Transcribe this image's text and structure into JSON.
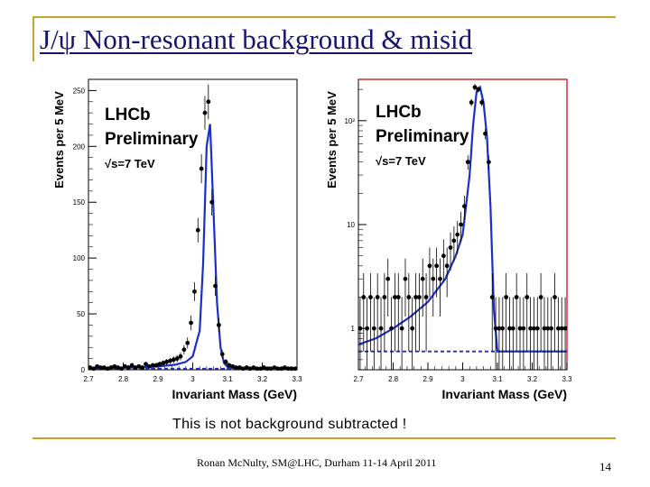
{
  "slide": {
    "title": "J/ψ Non-resonant background & misid",
    "caption": "This is not background subtracted !",
    "footer": "Ronan McNulty, SM@LHC, Durham 11-14 April 2011",
    "page_number": "14",
    "accent_color": "#c8a22a",
    "title_color": "#14146e"
  },
  "chart_data": [
    {
      "type": "scatter",
      "scale": "linear",
      "title": "",
      "annotations": [
        "LHCb",
        "Preliminary",
        "√s=7 TeV"
      ],
      "xlabel": "Invariant Mass (GeV)",
      "ylabel": "Events per 5 MeV",
      "xlim": [
        2.7,
        3.3
      ],
      "ylim": [
        0,
        260
      ],
      "xticks": [
        2.7,
        2.8,
        2.9,
        3,
        3.1,
        3.2,
        3.3
      ],
      "xtick_labels": [
        "2.7",
        "2.8",
        "2.9",
        "3",
        "3.1",
        "3.2",
        "3.3"
      ],
      "yticks": [
        0,
        50,
        100,
        150,
        200,
        250
      ],
      "ytick_labels": [
        "0",
        "50",
        "100",
        "150",
        "200",
        "250"
      ],
      "points": {
        "x": [
          2.705,
          2.715,
          2.725,
          2.735,
          2.745,
          2.755,
          2.765,
          2.775,
          2.785,
          2.795,
          2.805,
          2.815,
          2.825,
          2.835,
          2.845,
          2.855,
          2.865,
          2.875,
          2.885,
          2.895,
          2.905,
          2.915,
          2.925,
          2.935,
          2.945,
          2.955,
          2.965,
          2.975,
          2.985,
          2.995,
          3.005,
          3.015,
          3.025,
          3.035,
          3.045,
          3.055,
          3.065,
          3.075,
          3.085,
          3.095,
          3.105,
          3.115,
          3.125,
          3.135,
          3.145,
          3.155,
          3.165,
          3.175,
          3.185,
          3.195,
          3.205,
          3.215,
          3.225,
          3.235,
          3.245,
          3.255,
          3.265,
          3.275,
          3.285,
          3.295
        ],
        "y": [
          2,
          1,
          3,
          2,
          2,
          1,
          2,
          3,
          2,
          1,
          3,
          2,
          4,
          2,
          3,
          2,
          5,
          3,
          4,
          4,
          5,
          6,
          7,
          8,
          9,
          10,
          12,
          18,
          24,
          42,
          70,
          125,
          180,
          230,
          240,
          150,
          75,
          40,
          14,
          7,
          4,
          3,
          2,
          2,
          1,
          2,
          1,
          2,
          1,
          1,
          2,
          1,
          1,
          2,
          1,
          1,
          2,
          1,
          1,
          1
        ],
        "err": [
          1.4,
          1,
          1.7,
          1.4,
          1.4,
          1,
          1.4,
          1.7,
          1.4,
          1,
          1.7,
          1.4,
          2,
          1.4,
          1.7,
          1.4,
          2.2,
          1.7,
          2,
          2,
          2.2,
          2.4,
          2.6,
          2.8,
          3,
          3.2,
          3.5,
          4.2,
          4.9,
          6.5,
          8.4,
          11,
          13,
          15,
          15.5,
          12,
          8.7,
          6.3,
          3.7,
          2.6,
          2,
          1.7,
          1.4,
          1.4,
          1,
          1.4,
          1,
          1.4,
          1,
          1,
          1.4,
          1,
          1,
          1.4,
          1,
          1,
          1.4,
          1,
          1,
          1
        ]
      },
      "series": [
        {
          "name": "fit",
          "x": [
            2.7,
            2.75,
            2.8,
            2.85,
            2.9,
            2.95,
            2.98,
            3,
            3.02,
            3.03,
            3.04,
            3.05,
            3.06,
            3.07,
            3.08,
            3.09,
            3.1,
            3.12,
            3.15,
            3.2,
            3.25,
            3.3
          ],
          "values": [
            1.5,
            1.6,
            1.8,
            2.2,
            3,
            4.5,
            7,
            12,
            35,
            95,
            200,
            220,
            140,
            60,
            20,
            6,
            2.5,
            1.3,
            1,
            1,
            1,
            1
          ]
        },
        {
          "name": "background",
          "x": [
            2.7,
            3.3
          ],
          "values": [
            1,
            1
          ]
        }
      ]
    },
    {
      "type": "scatter",
      "scale": "log",
      "title": "",
      "annotations": [
        "LHCb",
        "Preliminary",
        "√s=7 TeV"
      ],
      "xlabel": "Invariant Mass (GeV)",
      "ylabel": "Events per 5 MeV",
      "xlim": [
        2.7,
        3.3
      ],
      "ylim": [
        0.4,
        250
      ],
      "xticks": [
        2.7,
        2.8,
        2.9,
        3,
        3.1,
        3.2,
        3.3
      ],
      "xtick_labels": [
        "2.7",
        "2.8",
        "2.9",
        "3",
        "3.1",
        "3.2",
        "3.3"
      ],
      "yticks": [
        1,
        10,
        100
      ],
      "ytick_labels": [
        "1",
        "10",
        "10²"
      ],
      "points": {
        "x": [
          2.705,
          2.715,
          2.725,
          2.735,
          2.745,
          2.755,
          2.765,
          2.775,
          2.785,
          2.795,
          2.805,
          2.815,
          2.825,
          2.835,
          2.845,
          2.855,
          2.865,
          2.875,
          2.885,
          2.895,
          2.905,
          2.915,
          2.925,
          2.935,
          2.945,
          2.955,
          2.965,
          2.975,
          2.985,
          2.995,
          3.005,
          3.015,
          3.025,
          3.035,
          3.045,
          3.055,
          3.065,
          3.075,
          3.085,
          3.095,
          3.105,
          3.115,
          3.125,
          3.135,
          3.145,
          3.155,
          3.165,
          3.175,
          3.185,
          3.195,
          3.205,
          3.215,
          3.225,
          3.235,
          3.245,
          3.255,
          3.265,
          3.275,
          3.285,
          3.295
        ],
        "y": [
          1,
          2,
          1,
          2,
          1,
          2,
          1,
          2,
          3,
          1,
          2,
          2,
          1,
          3,
          2,
          1,
          2,
          2,
          3,
          2,
          4,
          3,
          4,
          3,
          5,
          4,
          6,
          7,
          8,
          10,
          15,
          40,
          150,
          210,
          200,
          150,
          75,
          40,
          2,
          1,
          1,
          1,
          2,
          1,
          1,
          2,
          1,
          1,
          2,
          1,
          1,
          1,
          2,
          1,
          1,
          1,
          2,
          1,
          1,
          1
        ],
        "err": [
          1,
          1.4,
          1,
          1.4,
          1,
          1.4,
          1,
          1.4,
          1.7,
          1,
          1.4,
          1.4,
          1,
          1.7,
          1.4,
          1,
          1.4,
          1.4,
          1.7,
          1.4,
          2,
          1.7,
          2,
          1.7,
          2.2,
          2,
          2.4,
          2.6,
          2.8,
          3.2,
          3.9,
          6.3,
          12,
          14.5,
          14,
          12,
          8.7,
          6.3,
          1.4,
          1,
          1,
          1,
          1.4,
          1,
          1,
          1.4,
          1,
          1,
          1.4,
          1,
          1,
          1,
          1.4,
          1,
          1,
          1,
          1.4,
          1,
          1,
          1
        ]
      },
      "series": [
        {
          "name": "fit",
          "x": [
            2.7,
            2.75,
            2.8,
            2.85,
            2.9,
            2.95,
            2.98,
            3,
            3.02,
            3.03,
            3.04,
            3.05,
            3.06,
            3.07,
            3.08,
            3.09,
            3.1,
            3.12,
            3.15,
            3.2,
            3.25,
            3.3
          ],
          "values": [
            0.7,
            0.8,
            1,
            1.3,
            1.8,
            3,
            5,
            8,
            30,
            90,
            190,
            210,
            150,
            70,
            15,
            1.5,
            0.6,
            0.6,
            0.6,
            0.6,
            0.6,
            0.6
          ]
        },
        {
          "name": "background",
          "x": [
            2.7,
            3.3
          ],
          "values": [
            0.6,
            0.6
          ]
        }
      ]
    }
  ]
}
